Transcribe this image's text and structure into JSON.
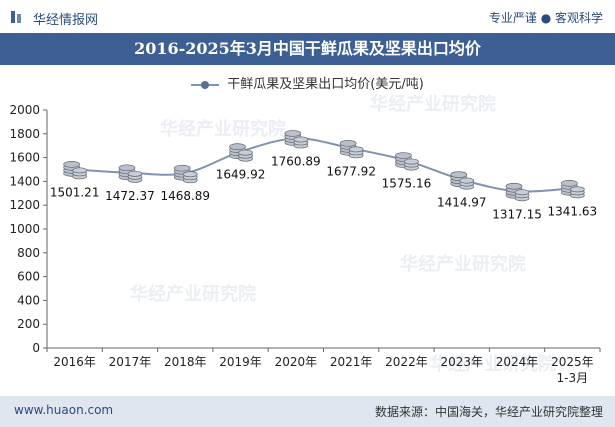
{
  "header": {
    "brand": "华经情报网",
    "tagline": "专业严谨 ● 客观科学"
  },
  "title": "2016-2025年3月中国干鲜瓜果及坚果出口均价",
  "chart_data": {
    "type": "line",
    "categories": [
      "2016年",
      "2017年",
      "2018年",
      "2019年",
      "2020年",
      "2021年",
      "2022年",
      "2023年",
      "2024年",
      "2025年"
    ],
    "category_sublabels": [
      "",
      "",
      "",
      "",
      "",
      "",
      "",
      "",
      "",
      "1-3月"
    ],
    "series": [
      {
        "name": "干鲜瓜果及坚果出口均价(美元/吨)",
        "values": [
          1501.21,
          1472.37,
          1468.89,
          1649.92,
          1760.89,
          1677.92,
          1575.16,
          1414.97,
          1317.15,
          1341.63
        ],
        "labels": [
          "1501.21",
          "1472.37",
          "1468.89",
          "1649.92",
          "1760.89",
          "1677.92",
          "1575.16",
          "1414.97",
          "1317.15",
          "1341.63"
        ]
      }
    ],
    "yticks": [
      "0",
      "200",
      "400",
      "600",
      "800",
      "1000",
      "1200",
      "1400",
      "1600",
      "1800",
      "2000"
    ],
    "ylim": [
      0,
      2000
    ],
    "grid": false,
    "legend": "top-center",
    "line_color": "#7f93b3",
    "marker_color": "#5b6f93"
  },
  "footer": {
    "site": "www.huaon.com",
    "source": "数据来源：中国海关，华经产业研究院整理"
  }
}
